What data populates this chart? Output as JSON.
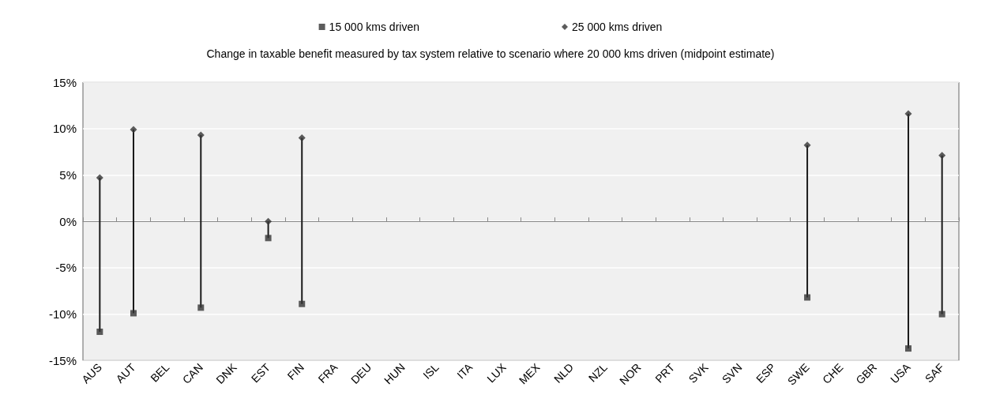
{
  "chart_data": {
    "type": "scatter",
    "title": "Change in taxable benefit measured by tax system relative to scenario where 20 000 kms driven (midpoint estimate)",
    "categories": [
      "AUS",
      "AUT",
      "BEL",
      "CAN",
      "DNK",
      "EST",
      "FIN",
      "FRA",
      "DEU",
      "HUN",
      "ISL",
      "ITA",
      "LUX",
      "MEX",
      "NLD",
      "NZL",
      "NOR",
      "PRT",
      "SVK",
      "SVN",
      "ESP",
      "SWE",
      "CHE",
      "GBR",
      "USA",
      "SAF"
    ],
    "series": [
      {
        "name": "15 000 kms driven",
        "color": "#333333",
        "marker": "square",
        "values": [
          -11.9,
          -9.9,
          null,
          -9.3,
          null,
          -1.8,
          -8.9,
          null,
          null,
          null,
          null,
          null,
          null,
          null,
          null,
          null,
          null,
          null,
          null,
          null,
          null,
          -8.2,
          null,
          null,
          -13.7,
          -10.0
        ]
      },
      {
        "name": "25 000 kms driven",
        "color": "#333333",
        "marker": "diamond",
        "values": [
          4.7,
          9.9,
          null,
          9.3,
          null,
          0,
          9.0,
          null,
          null,
          null,
          null,
          null,
          null,
          null,
          null,
          null,
          null,
          null,
          null,
          null,
          null,
          8.2,
          null,
          null,
          11.6,
          7.1
        ]
      }
    ],
    "ylim": [
      -15,
      15
    ],
    "yticks": [
      {
        "value": -15,
        "label": "-15%"
      },
      {
        "value": -10,
        "label": "-10%"
      },
      {
        "value": -5,
        "label": "-5%"
      },
      {
        "value": 0,
        "label": "0%"
      },
      {
        "value": 5,
        "label": "5%"
      },
      {
        "value": 10,
        "label": "10%"
      },
      {
        "value": 15,
        "label": "15%"
      }
    ],
    "grid": "y",
    "legend": "top"
  }
}
